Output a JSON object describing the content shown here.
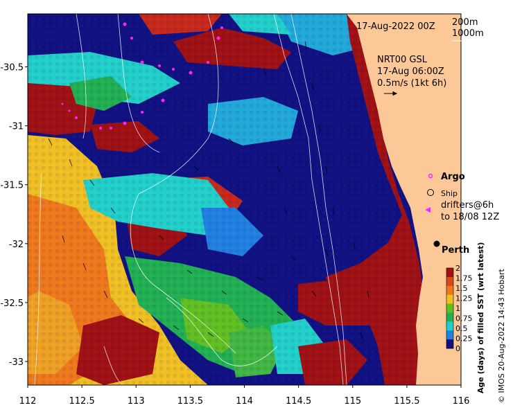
{
  "map": {
    "title": "17-Aug-2022 00Z",
    "contour_legend": [
      "200m",
      "1000m"
    ],
    "current_label": [
      "NRT00 GSL",
      "17-Aug 06:00Z",
      "0.5m/s (1kt 6h)"
    ],
    "legend": {
      "argo": "Argo",
      "ship": "Ship",
      "drifters": [
        "drifters@6h",
        "to 18/08 12Z"
      ]
    },
    "city": "Perth",
    "colorbar": {
      "title": "Age (days) of filled SST (wrt latest)",
      "ticks": [
        "2",
        "1.75",
        "1.5",
        "1.25",
        "1",
        "0.75",
        "0.5",
        "0.25",
        "0"
      ],
      "colors": [
        "#a01010",
        "#d84818",
        "#f07818",
        "#f0c020",
        "#60c020",
        "#20b050",
        "#20d0c8",
        "#2080e0",
        "#101080"
      ]
    },
    "credit": "© IMOS 20-Aug-2022 14:43 Hobart",
    "xticks": [
      "112",
      "112.5",
      "113",
      "113.5",
      "114",
      "114.5",
      "115",
      "115.5",
      "116"
    ],
    "yticks": [
      "-30.5",
      "-31",
      "-31.5",
      "-32",
      "-32.5",
      "-33"
    ]
  },
  "chart_data": {
    "type": "heatmap",
    "title": "17-Aug-2022 00Z",
    "xlim": [
      112,
      116
    ],
    "ylim": [
      -33.2,
      -30.05
    ],
    "colorbar_range": [
      0,
      2
    ],
    "colorbar_label": "Age (days) of filled SST (wrt latest)",
    "places": [
      {
        "name": "Perth",
        "lon": 115.86,
        "lat": -31.95
      }
    ]
  }
}
